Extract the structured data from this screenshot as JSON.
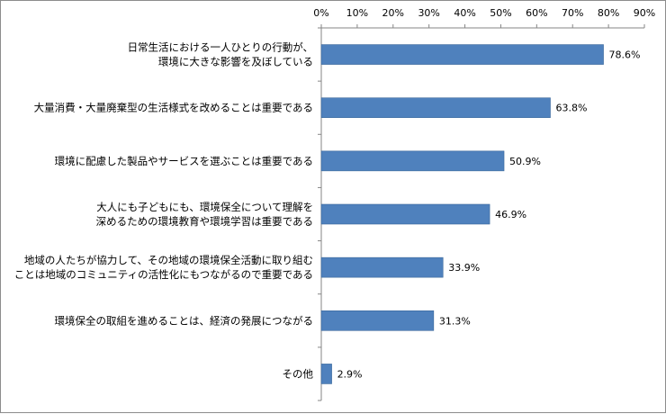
{
  "chart_data": {
    "type": "bar",
    "orientation": "horizontal",
    "title": "",
    "xlabel": "",
    "ylabel": "",
    "xlim": [
      0,
      90
    ],
    "tick_step": 10,
    "tick_labels": [
      "0%",
      "10%",
      "20%",
      "30%",
      "40%",
      "50%",
      "60%",
      "70%",
      "80%",
      "90%"
    ],
    "x_axis_position": "top",
    "grid": false,
    "legend": "none",
    "bar_color": "#4f81bd",
    "categories": [
      [
        "日常生活における一人ひとりの行動が、",
        "環境に大きな影響を及ぼしている"
      ],
      [
        "大量消費・大量廃棄型の生活様式を改めることは重要である"
      ],
      [
        "環境に配慮した製品やサービスを選ぶことは重要である"
      ],
      [
        "大人にも子どもにも、環境保全について理解を",
        "深めるための環境教育や環境学習は重要である"
      ],
      [
        "地域の人たちが協力して、その地域の環境保全活動に取り組む",
        "ことは地域のコミュニティの活性化にもつながるので重要である"
      ],
      [
        "環境保全の取組を進めることは、経済の発展につながる"
      ],
      [
        "その他"
      ]
    ],
    "values": [
      78.6,
      63.8,
      50.9,
      46.9,
      33.9,
      31.3,
      2.9
    ],
    "value_labels": [
      "78.6%",
      "63.8%",
      "50.9%",
      "46.9%",
      "33.9%",
      "31.3%",
      "2.9%"
    ]
  }
}
